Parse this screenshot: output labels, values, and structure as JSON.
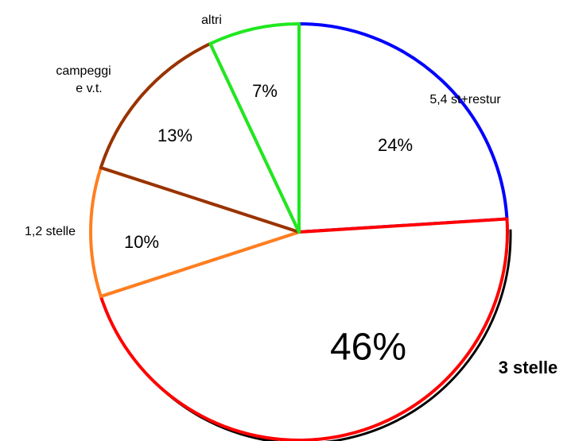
{
  "chart_data": {
    "type": "pie",
    "categories": [
      "5,4 st+restur",
      "3 stelle",
      "1,2 stelle",
      "campeggi e v.t.",
      "altri"
    ],
    "values": [
      24,
      46,
      10,
      13,
      7
    ],
    "value_labels": [
      "24%",
      "46%",
      "10%",
      "13%",
      "7%"
    ],
    "category_label_lines": [
      [
        "5,4 st+restur"
      ],
      [
        "3 stelle"
      ],
      [
        "1,2 stelle"
      ],
      [
        "campeggi",
        "e v.t."
      ],
      [
        "altri"
      ]
    ],
    "colors": [
      "#0000ff",
      "#ff0000",
      "#ff7f1f",
      "#993300",
      "#1fe81f"
    ],
    "fill": "#ffffff",
    "highlighted_category": "3 stelle",
    "legend": "none"
  }
}
